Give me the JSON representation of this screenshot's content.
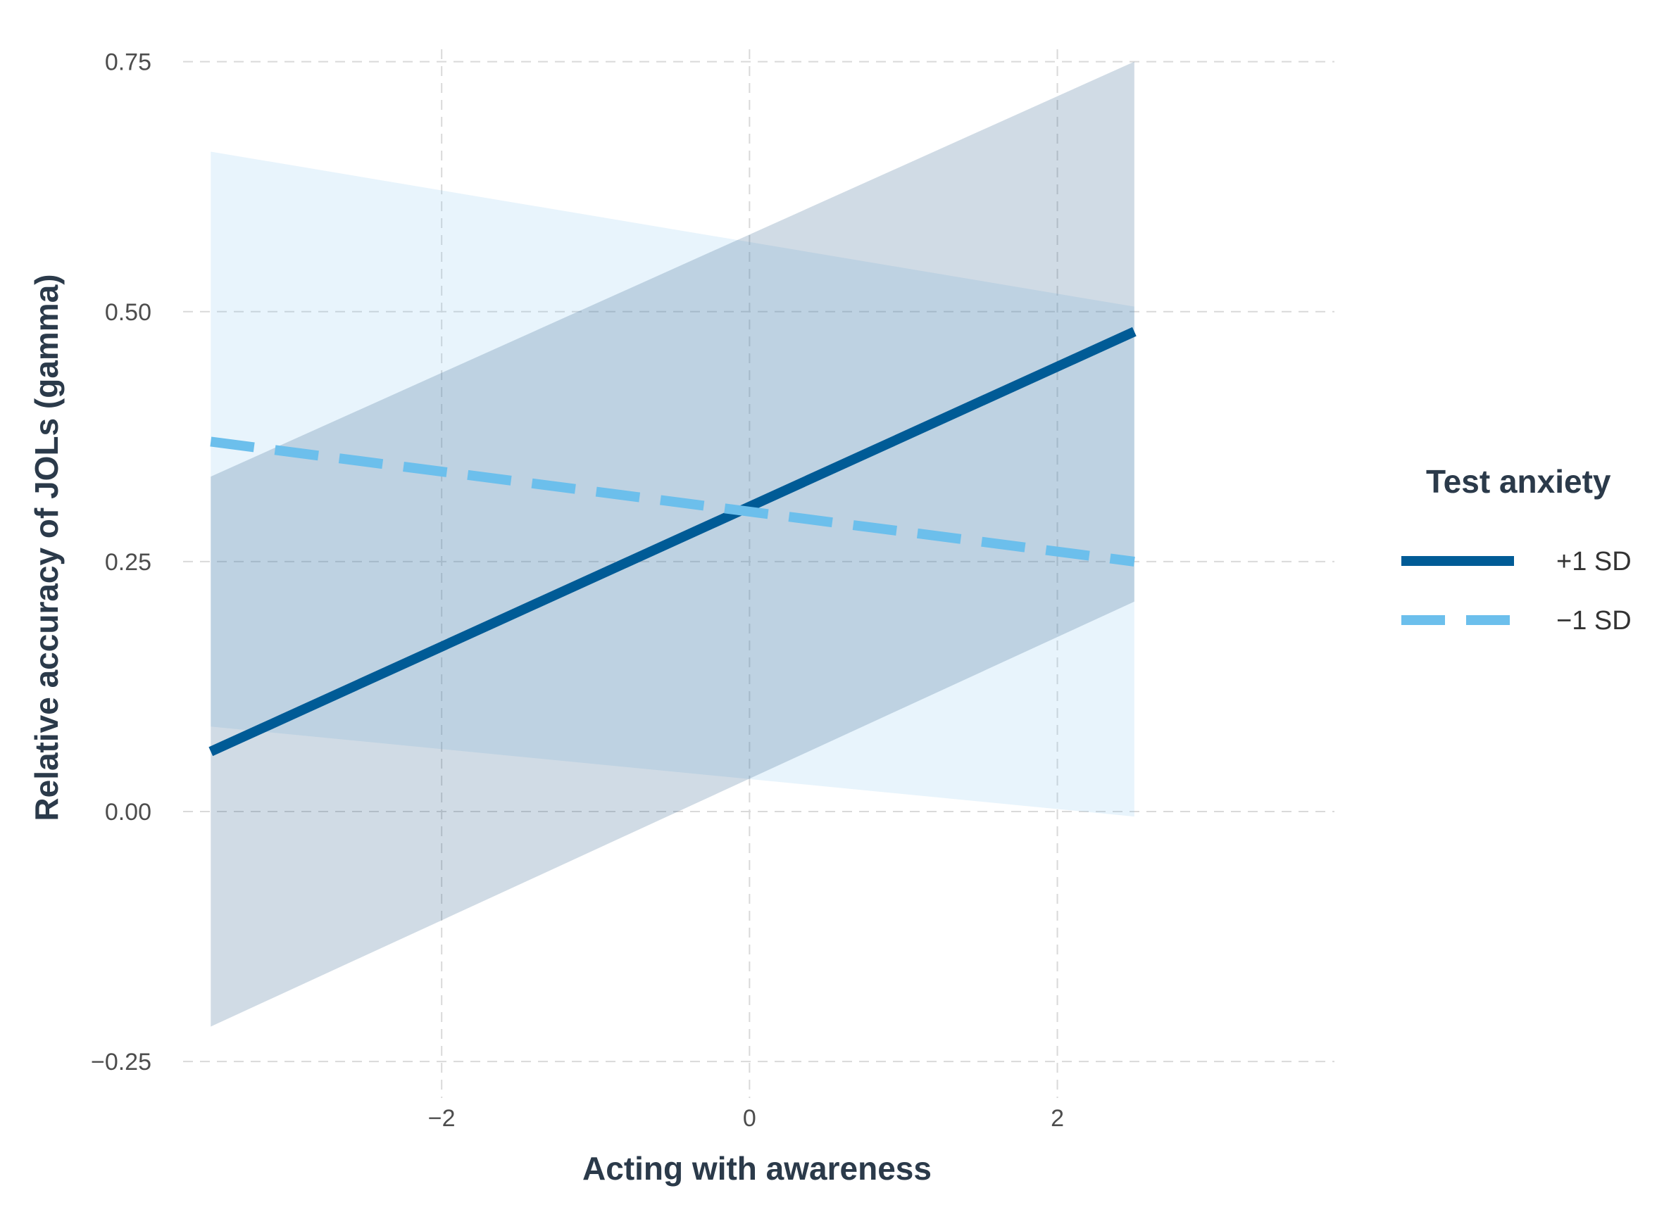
{
  "chart_data": {
    "type": "line",
    "title": "",
    "xlabel": "Acting with awareness",
    "ylabel": "Relative accuracy of JOLs (gamma)",
    "xlim": [
      -4.0,
      3.8
    ],
    "ylim": [
      -0.29,
      0.78
    ],
    "x_ticks": [
      -2,
      0,
      2
    ],
    "x_tick_labels": [
      "−2",
      "0",
      "2"
    ],
    "y_ticks": [
      -0.25,
      0,
      0.25,
      0.5,
      0.75
    ],
    "y_tick_labels": [
      "−0.25",
      "0.00",
      "0.25",
      "0.50",
      "0.75"
    ],
    "grid": true,
    "legend": {
      "title": "Test anxiety",
      "placement": "right"
    },
    "series": [
      {
        "name": "+1 SD",
        "color": "#005b96",
        "band_color": "#2b5c8a",
        "line_style": "solid",
        "x": [
          -3.5,
          2.5
        ],
        "y": [
          0.06,
          0.48
        ],
        "ci_lower": [
          -0.215,
          0.21
        ],
        "ci_upper": [
          0.335,
          0.75
        ]
      },
      {
        "name": "−1 SD",
        "color": "#6cbfec",
        "band_color": "#7fc2f0",
        "line_style": "dashed",
        "x": [
          -3.5,
          2.5
        ],
        "y": [
          0.37,
          0.25
        ],
        "ci_lower": [
          0.085,
          -0.005
        ],
        "ci_upper": [
          0.66,
          0.505
        ]
      }
    ]
  }
}
